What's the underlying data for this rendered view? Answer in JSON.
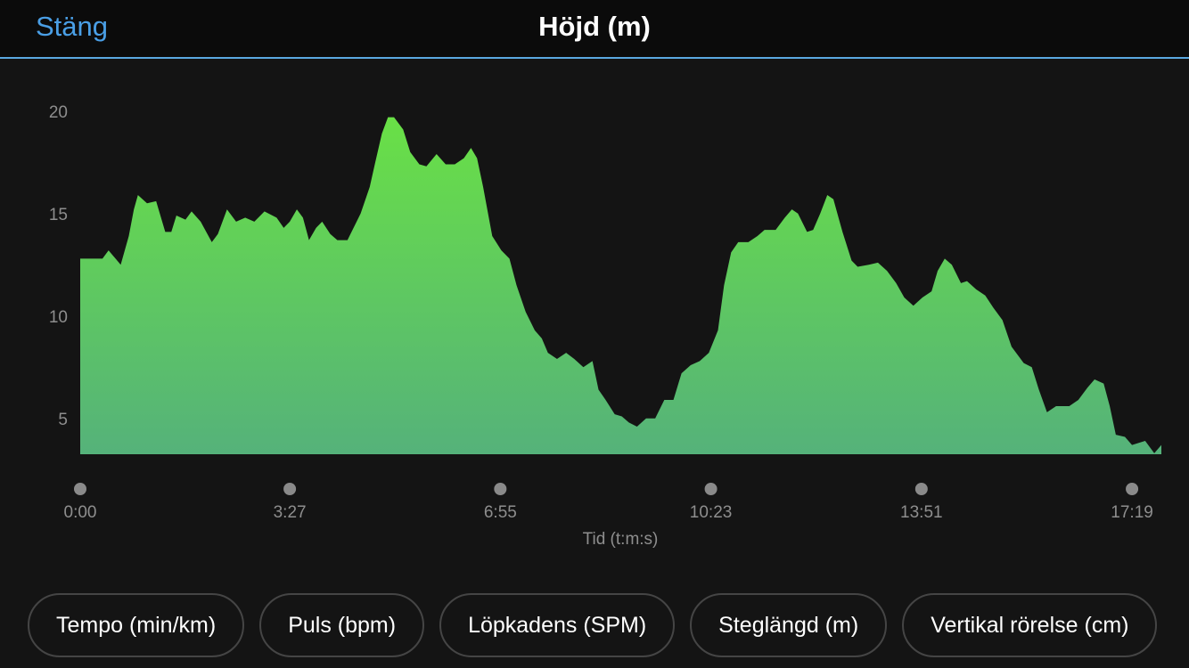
{
  "header": {
    "close": "Stäng",
    "title": "Höjd (m)"
  },
  "chart_data": {
    "type": "area",
    "x_label": "Tid (t:m:s)",
    "color_top": "#69e046",
    "color_bottom": "#55b27a",
    "x": [
      0,
      8.8,
      22,
      28,
      40,
      48,
      53,
      57,
      66,
      75,
      84,
      90,
      95,
      104,
      110,
      119,
      130,
      136,
      145,
      154,
      163,
      172,
      182,
      194,
      201,
      207,
      214,
      220,
      226,
      233,
      239,
      247,
      254,
      264,
      277,
      286,
      291,
      298,
      304,
      310,
      319,
      326,
      335,
      342,
      352,
      361,
      370,
      379,
      386,
      392,
      398,
      407,
      416,
      424,
      431,
      440,
      449,
      456,
      462,
      471,
      480,
      488,
      497,
      506,
      512,
      519,
      528,
      535,
      542,
      550,
      559,
      568,
      577,
      586,
      594,
      603,
      612,
      621,
      630,
      636,
      643,
      650,
      660,
      669,
      676,
      687,
      696,
      703,
      709,
      718,
      724,
      731,
      738,
      744,
      753,
      762,
      768,
      779,
      788,
      797,
      806,
      814,
      823,
      832,
      841,
      847,
      854,
      861,
      870,
      876,
      885,
      894,
      902,
      911,
      920,
      932,
      940,
      947,
      955,
      964,
      977,
      986,
      995,
      1002,
      1011,
      1017,
      1023,
      1032,
      1039,
      1052,
      1061,
      1068
    ],
    "values": [
      12.9,
      12.9,
      12.9,
      13.3,
      12.6,
      14.0,
      15.3,
      16.0,
      15.6,
      15.7,
      14.2,
      14.2,
      15.0,
      14.8,
      15.2,
      14.7,
      13.7,
      14.1,
      15.3,
      14.7,
      14.9,
      14.7,
      15.2,
      14.9,
      14.4,
      14.7,
      15.3,
      14.9,
      13.8,
      14.4,
      14.7,
      14.1,
      13.8,
      13.8,
      15.1,
      16.4,
      17.5,
      19.0,
      19.8,
      19.8,
      19.2,
      18.1,
      17.5,
      17.4,
      18.0,
      17.5,
      17.5,
      17.8,
      18.3,
      17.8,
      16.4,
      14.0,
      13.3,
      12.9,
      11.6,
      10.3,
      9.4,
      9.0,
      8.3,
      8.0,
      8.3,
      8.0,
      7.6,
      7.9,
      6.5,
      6.0,
      5.3,
      5.2,
      4.9,
      4.7,
      5.1,
      5.1,
      6.0,
      6.0,
      7.3,
      7.7,
      7.9,
      8.3,
      9.4,
      11.6,
      13.2,
      13.7,
      13.7,
      14.0,
      14.3,
      14.3,
      14.9,
      15.3,
      15.1,
      14.2,
      14.3,
      15.1,
      16.0,
      15.8,
      14.2,
      12.8,
      12.5,
      12.6,
      12.7,
      12.3,
      11.7,
      11.0,
      10.6,
      11.0,
      11.3,
      12.3,
      12.9,
      12.6,
      11.7,
      11.8,
      11.4,
      11.1,
      10.5,
      9.9,
      8.6,
      7.8,
      7.6,
      6.5,
      5.4,
      5.7,
      5.7,
      6.0,
      6.6,
      7.0,
      6.8,
      5.7,
      4.3,
      4.2,
      3.8,
      4.0,
      3.4,
      3.8
    ],
    "xlim": [
      0,
      1068
    ],
    "ylim": [
      3.35,
      21.2
    ],
    "xticks": [
      {
        "value": 0,
        "label": "0:00"
      },
      {
        "value": 207,
        "label": "3:27"
      },
      {
        "value": 415,
        "label": "6:55"
      },
      {
        "value": 623,
        "label": "10:23"
      },
      {
        "value": 831,
        "label": "13:51"
      },
      {
        "value": 1039,
        "label": "17:19"
      }
    ],
    "yticks": [
      5,
      10,
      15,
      20
    ],
    "grid": false
  },
  "tabs": [
    "Tempo (min/km)",
    "Puls (bpm)",
    "Löpkadens (SPM)",
    "Steglängd (m)",
    "Vertikal rörelse (cm)"
  ]
}
